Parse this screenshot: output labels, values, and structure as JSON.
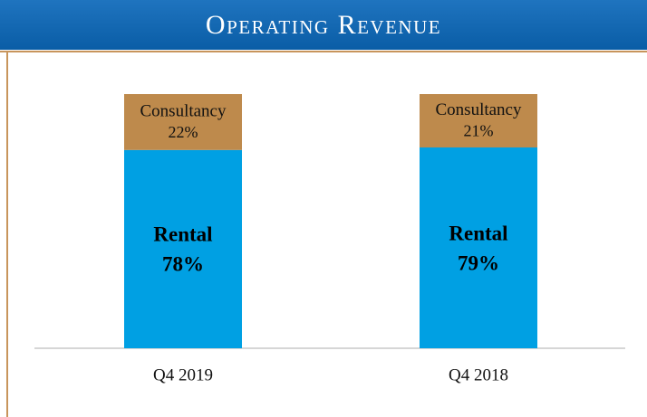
{
  "chart_data": {
    "type": "stacked_bar",
    "title": "Operating Revenue",
    "categories": [
      "Q4 2019",
      "Q4 2018"
    ],
    "series": [
      {
        "name": "Rental",
        "color": "#00a0e3",
        "values": [
          78,
          79
        ],
        "value_labels": [
          "78%",
          "79%"
        ]
      },
      {
        "name": "Consultancy",
        "color": "#be8a4c",
        "values": [
          22,
          21
        ],
        "value_labels": [
          "22%",
          "21%"
        ]
      }
    ],
    "ylim": [
      0,
      100
    ]
  }
}
